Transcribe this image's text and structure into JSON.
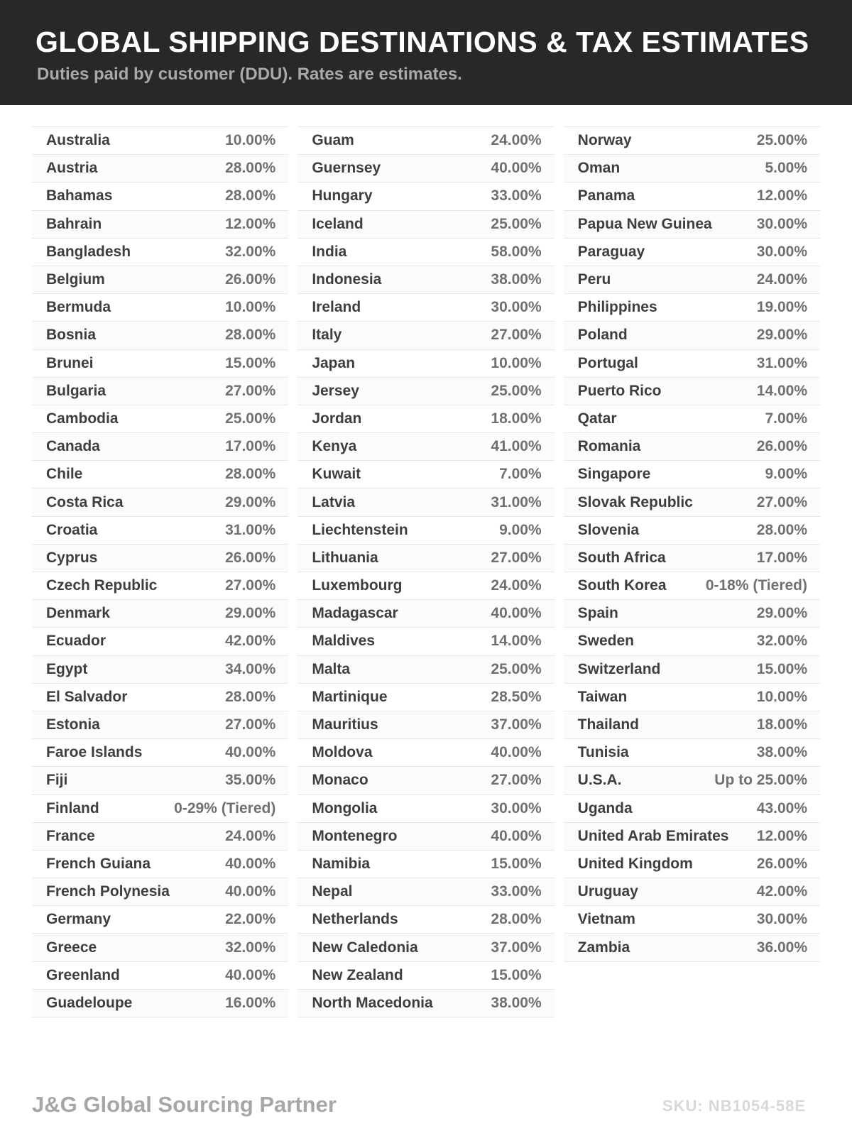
{
  "header": {
    "title": "GLOBAL SHIPPING DESTINATIONS & TAX ESTIMATES",
    "subtitle": "Duties paid by customer (DDU). Rates are estimates."
  },
  "table": {
    "columns": [
      {
        "rows": [
          {
            "country": "Australia",
            "rate": "10.00%"
          },
          {
            "country": "Austria",
            "rate": "28.00%"
          },
          {
            "country": "Bahamas",
            "rate": "28.00%"
          },
          {
            "country": "Bahrain",
            "rate": "12.00%"
          },
          {
            "country": "Bangladesh",
            "rate": "32.00%"
          },
          {
            "country": "Belgium",
            "rate": "26.00%"
          },
          {
            "country": "Bermuda",
            "rate": "10.00%"
          },
          {
            "country": "Bosnia",
            "rate": "28.00%"
          },
          {
            "country": "Brunei",
            "rate": "15.00%"
          },
          {
            "country": "Bulgaria",
            "rate": "27.00%"
          },
          {
            "country": "Cambodia",
            "rate": "25.00%"
          },
          {
            "country": "Canada",
            "rate": "17.00%"
          },
          {
            "country": "Chile",
            "rate": "28.00%"
          },
          {
            "country": "Costa Rica",
            "rate": "29.00%"
          },
          {
            "country": "Croatia",
            "rate": "31.00%"
          },
          {
            "country": "Cyprus",
            "rate": "26.00%"
          },
          {
            "country": "Czech Republic",
            "rate": "27.00%"
          },
          {
            "country": "Denmark",
            "rate": "29.00%"
          },
          {
            "country": "Ecuador",
            "rate": "42.00%"
          },
          {
            "country": "Egypt",
            "rate": "34.00%"
          },
          {
            "country": "El Salvador",
            "rate": "28.00%"
          },
          {
            "country": "Estonia",
            "rate": "27.00%"
          },
          {
            "country": "Faroe Islands",
            "rate": "40.00%"
          },
          {
            "country": "Fiji",
            "rate": "35.00%"
          },
          {
            "country": "Finland",
            "rate": "0-29% (Tiered)"
          },
          {
            "country": "France",
            "rate": "24.00%"
          },
          {
            "country": "French Guiana",
            "rate": "40.00%"
          },
          {
            "country": "French Polynesia",
            "rate": "40.00%"
          },
          {
            "country": "Germany",
            "rate": "22.00%"
          },
          {
            "country": "Greece",
            "rate": "32.00%"
          },
          {
            "country": "Greenland",
            "rate": "40.00%"
          },
          {
            "country": "Guadeloupe",
            "rate": "16.00%"
          }
        ]
      },
      {
        "rows": [
          {
            "country": "Guam",
            "rate": "24.00%"
          },
          {
            "country": "Guernsey",
            "rate": "40.00%"
          },
          {
            "country": "Hungary",
            "rate": "33.00%"
          },
          {
            "country": "Iceland",
            "rate": "25.00%"
          },
          {
            "country": "India",
            "rate": "58.00%"
          },
          {
            "country": "Indonesia",
            "rate": "38.00%"
          },
          {
            "country": "Ireland",
            "rate": "30.00%"
          },
          {
            "country": "Italy",
            "rate": "27.00%"
          },
          {
            "country": "Japan",
            "rate": "10.00%"
          },
          {
            "country": "Jersey",
            "rate": "25.00%"
          },
          {
            "country": "Jordan",
            "rate": "18.00%"
          },
          {
            "country": "Kenya",
            "rate": "41.00%"
          },
          {
            "country": "Kuwait",
            "rate": "7.00%"
          },
          {
            "country": "Latvia",
            "rate": "31.00%"
          },
          {
            "country": "Liechtenstein",
            "rate": "9.00%"
          },
          {
            "country": "Lithuania",
            "rate": "27.00%"
          },
          {
            "country": "Luxembourg",
            "rate": "24.00%"
          },
          {
            "country": "Madagascar",
            "rate": "40.00%"
          },
          {
            "country": "Maldives",
            "rate": "14.00%"
          },
          {
            "country": "Malta",
            "rate": "25.00%"
          },
          {
            "country": "Martinique",
            "rate": "28.50%"
          },
          {
            "country": "Mauritius",
            "rate": "37.00%"
          },
          {
            "country": "Moldova",
            "rate": "40.00%"
          },
          {
            "country": "Monaco",
            "rate": "27.00%"
          },
          {
            "country": "Mongolia",
            "rate": "30.00%"
          },
          {
            "country": "Montenegro",
            "rate": "40.00%"
          },
          {
            "country": "Namibia",
            "rate": "15.00%"
          },
          {
            "country": "Nepal",
            "rate": "33.00%"
          },
          {
            "country": "Netherlands",
            "rate": "28.00%"
          },
          {
            "country": "New Caledonia",
            "rate": "37.00%"
          },
          {
            "country": "New Zealand",
            "rate": "15.00%"
          },
          {
            "country": "North Macedonia",
            "rate": "38.00%"
          }
        ]
      },
      {
        "rows": [
          {
            "country": "Norway",
            "rate": "25.00%"
          },
          {
            "country": "Oman",
            "rate": "5.00%"
          },
          {
            "country": "Panama",
            "rate": "12.00%"
          },
          {
            "country": "Papua New Guinea",
            "rate": "30.00%"
          },
          {
            "country": "Paraguay",
            "rate": "30.00%"
          },
          {
            "country": "Peru",
            "rate": "24.00%"
          },
          {
            "country": "Philippines",
            "rate": "19.00%"
          },
          {
            "country": "Poland",
            "rate": "29.00%"
          },
          {
            "country": "Portugal",
            "rate": "31.00%"
          },
          {
            "country": "Puerto Rico",
            "rate": "14.00%"
          },
          {
            "country": "Qatar",
            "rate": "7.00%"
          },
          {
            "country": "Romania",
            "rate": "26.00%"
          },
          {
            "country": "Singapore",
            "rate": "9.00%"
          },
          {
            "country": "Slovak Republic",
            "rate": "27.00%"
          },
          {
            "country": "Slovenia",
            "rate": "28.00%"
          },
          {
            "country": "South Africa",
            "rate": "17.00%"
          },
          {
            "country": "South Korea",
            "rate": "0-18% (Tiered)"
          },
          {
            "country": "Spain",
            "rate": "29.00%"
          },
          {
            "country": "Sweden",
            "rate": "32.00%"
          },
          {
            "country": "Switzerland",
            "rate": "15.00%"
          },
          {
            "country": "Taiwan",
            "rate": "10.00%"
          },
          {
            "country": "Thailand",
            "rate": "18.00%"
          },
          {
            "country": "Tunisia",
            "rate": "38.00%"
          },
          {
            "country": "U.S.A.",
            "rate": "Up to 25.00%"
          },
          {
            "country": "Uganda",
            "rate": "43.00%"
          },
          {
            "country": "United Arab Emirates",
            "rate": "12.00%"
          },
          {
            "country": "United Kingdom",
            "rate": "26.00%"
          },
          {
            "country": "Uruguay",
            "rate": "42.00%"
          },
          {
            "country": "Vietnam",
            "rate": "30.00%"
          },
          {
            "country": "Zambia",
            "rate": "36.00%"
          }
        ]
      }
    ]
  },
  "footer": {
    "brand": "J&G Global Sourcing Partner",
    "sku": "SKU: NB1054-58E"
  },
  "colors": {
    "header_bg": "#282828",
    "title": "#ffffff",
    "subtitle": "#a9a9a9",
    "country_text": "#3e3e3e",
    "rate_text": "#707070",
    "divider": "#e7e7e7",
    "footer_brand": "#a6a6a6",
    "footer_sku": "#d8d8d8"
  }
}
